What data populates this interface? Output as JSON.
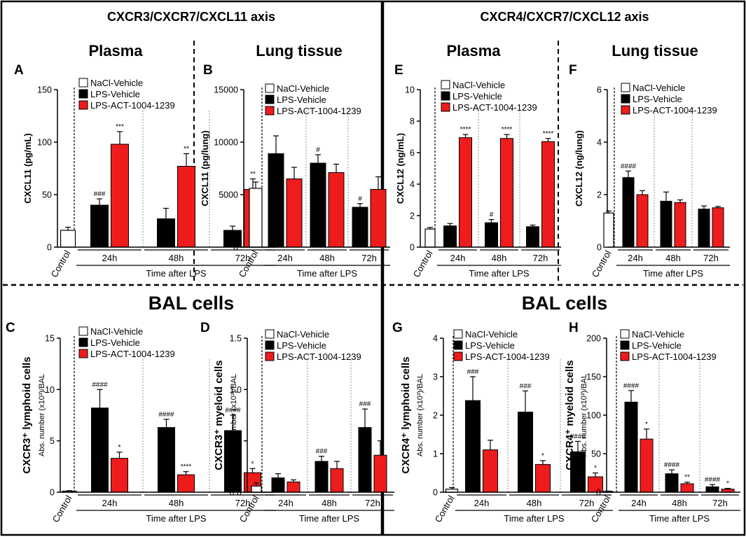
{
  "figure": {
    "left_header": "CXCR3/CXCR7/CXCL11 axis",
    "right_header": "CXCR4/CXCR7/CXCL12 axis",
    "bal_title_left": "BAL cells",
    "bal_title_right": "BAL cells"
  },
  "colors": {
    "nacl": "#ffffff",
    "lps_vehicle": "#000000",
    "lps_act": "#ee1c1c"
  },
  "chart_data": [
    {
      "panel": "A",
      "type": "bar",
      "section_title": "Plasma",
      "ylabel": "CXCL11 (pg/mL)",
      "ylabel_sub": "",
      "ylim": [
        0,
        150
      ],
      "yticks": [
        "0",
        "50",
        "100",
        "150"
      ],
      "legend": [
        "NaCl-Vehicle",
        "LPS-Vehicle",
        "LPS-ACT-1004-1239"
      ],
      "control_label": "Control",
      "timepoints": [
        "24h",
        "48h",
        "72h"
      ],
      "xlabel": "Time after LPS",
      "control": {
        "value": 16,
        "err": 3
      },
      "series": [
        {
          "name": "LPS-Vehicle",
          "values": [
            40,
            27,
            16
          ],
          "errors": [
            6,
            10,
            4
          ],
          "annotations": [
            "###",
            "",
            ""
          ]
        },
        {
          "name": "LPS-ACT-1004-1239",
          "values": [
            98,
            77,
            55
          ],
          "errors": [
            12,
            12,
            10
          ],
          "annotations": [
            "***",
            "**",
            "**"
          ]
        }
      ]
    },
    {
      "panel": "B",
      "type": "bar",
      "section_title": "Lung tissue",
      "ylabel": "CXCL11 (pg/lung)",
      "ylabel_sub": "",
      "ylim": [
        0,
        15000
      ],
      "yticks": [
        "0",
        "5000",
        "10000",
        "15000"
      ],
      "legend": [
        "NaCl-Vehicle",
        "LPS-Vehicle",
        "LPS-ACT-1004-1239"
      ],
      "control_label": "Control",
      "timepoints": [
        "24h",
        "48h",
        "72h"
      ],
      "xlabel": "Time after LPS",
      "control": {
        "value": 5600,
        "err": 600
      },
      "series": [
        {
          "name": "LPS-Vehicle",
          "values": [
            8900,
            8000,
            3800
          ],
          "errors": [
            1700,
            800,
            350
          ],
          "annotations": [
            "",
            "#",
            "#"
          ]
        },
        {
          "name": "LPS-ACT-1004-1239",
          "values": [
            6500,
            7100,
            5500
          ],
          "errors": [
            1100,
            800,
            1200
          ],
          "annotations": [
            "",
            "",
            ""
          ]
        }
      ]
    },
    {
      "panel": "E",
      "type": "bar",
      "section_title": "Plasma",
      "ylabel": "CXCL12 (ng/mL)",
      "ylabel_sub": "",
      "ylim": [
        0,
        10
      ],
      "yticks": [
        "0",
        "2",
        "4",
        "6",
        "8",
        "10"
      ],
      "legend": [
        "NaCl-Vehicle",
        "LPS-Vehicle",
        "LPS-ACT-1004-1239"
      ],
      "control_label": "Control",
      "timepoints": [
        "24h",
        "48h",
        "72h"
      ],
      "xlabel": "Time after LPS",
      "control": {
        "value": 1.15,
        "err": 0.1
      },
      "series": [
        {
          "name": "LPS-Vehicle",
          "values": [
            1.35,
            1.55,
            1.3
          ],
          "errors": [
            0.15,
            0.2,
            0.1
          ],
          "annotations": [
            "",
            "#",
            ""
          ]
        },
        {
          "name": "LPS-ACT-1004-1239",
          "values": [
            6.95,
            6.9,
            6.7
          ],
          "errors": [
            0.2,
            0.25,
            0.2
          ],
          "annotations": [
            "****",
            "****",
            "****"
          ]
        }
      ]
    },
    {
      "panel": "F",
      "type": "bar",
      "section_title": "Lung tissue",
      "ylabel": "CXCL12 (ng/lung)",
      "ylabel_sub": "",
      "ylim": [
        0,
        6
      ],
      "yticks": [
        "0",
        "2",
        "4",
        "6"
      ],
      "legend": [
        "NaCl-Vehicle",
        "LPS-Vehicle",
        "LPS-ACT-1004-1239"
      ],
      "control_label": "Control",
      "timepoints": [
        "24h",
        "48h",
        "72h"
      ],
      "xlabel": "Time after LPS",
      "control": {
        "value": 1.3,
        "err": 0.08
      },
      "series": [
        {
          "name": "LPS-Vehicle",
          "values": [
            2.65,
            1.75,
            1.45
          ],
          "errors": [
            0.25,
            0.35,
            0.12
          ],
          "annotations": [
            "####",
            "",
            ""
          ]
        },
        {
          "name": "LPS-ACT-1004-1239",
          "values": [
            2.0,
            1.7,
            1.5
          ],
          "errors": [
            0.15,
            0.1,
            0.05
          ],
          "annotations": [
            "",
            "",
            ""
          ]
        }
      ]
    },
    {
      "panel": "C",
      "type": "bar",
      "section_title": "",
      "ylabel": "CXCR3⁺ lymphoid cells",
      "ylabel_sub": "Abs. number (x10³)/BAL",
      "ylim": [
        0,
        15
      ],
      "yticks": [
        "0",
        "5",
        "10",
        "15"
      ],
      "legend": [
        "NaCl-Vehicle",
        "LPS-Vehicle",
        "LPS-ACT-1004-1239"
      ],
      "control_label": "Control",
      "timepoints": [
        "24h",
        "48h",
        "72h"
      ],
      "xlabel": "Time after LPS",
      "control": {
        "value": 0.1,
        "err": 0.05
      },
      "series": [
        {
          "name": "LPS-Vehicle",
          "values": [
            8.2,
            6.3,
            6.0
          ],
          "errors": [
            1.8,
            0.8,
            1.5
          ],
          "annotations": [
            "####",
            "####",
            "####"
          ]
        },
        {
          "name": "LPS-ACT-1004-1239",
          "values": [
            3.3,
            1.7,
            1.9
          ],
          "errors": [
            0.6,
            0.3,
            0.4
          ],
          "annotations": [
            "*",
            "****",
            "*"
          ]
        }
      ]
    },
    {
      "panel": "D",
      "type": "bar",
      "section_title": "",
      "ylabel": "CXCR3⁺ myeloid cells",
      "ylabel_sub": "Abs. number (x10³)/BAL",
      "ylim": [
        0,
        1.5
      ],
      "yticks": [
        "0.0",
        "0.5",
        "1.0",
        "1.5"
      ],
      "legend": [
        "NaCl-Vehicle",
        "LPS-Vehicle",
        "LPS-ACT-1004-1239"
      ],
      "control_label": "Control",
      "timepoints": [
        "24h",
        "48h",
        "72h"
      ],
      "xlabel": "Time after LPS",
      "control": {
        "value": 0.06,
        "err": 0.03
      },
      "series": [
        {
          "name": "LPS-Vehicle",
          "values": [
            0.14,
            0.3,
            0.63
          ],
          "errors": [
            0.04,
            0.05,
            0.18
          ],
          "annotations": [
            "",
            "###",
            "###"
          ]
        },
        {
          "name": "LPS-ACT-1004-1239",
          "values": [
            0.1,
            0.23,
            0.36
          ],
          "errors": [
            0.02,
            0.07,
            0.14
          ],
          "annotations": [
            "",
            "",
            ""
          ]
        }
      ]
    },
    {
      "panel": "G",
      "type": "bar",
      "section_title": "",
      "ylabel": "CXCR4⁺ lymphoid cells",
      "ylabel_sub": "Abs. number (x10³)/BAL",
      "ylim": [
        0,
        4
      ],
      "yticks": [
        "0",
        "1",
        "2",
        "3",
        "4"
      ],
      "legend": [
        "NaCl-Vehicle",
        "LPS-Vehicle",
        "LPS-ACT-1004-1239"
      ],
      "control_label": "Control",
      "timepoints": [
        "24h",
        "48h",
        "72h"
      ],
      "xlabel": "Time after LPS",
      "control": {
        "value": 0.08,
        "err": 0.04
      },
      "series": [
        {
          "name": "LPS-Vehicle",
          "values": [
            2.38,
            2.08,
            1.05
          ],
          "errors": [
            0.62,
            0.55,
            0.27
          ],
          "annotations": [
            "###",
            "###",
            "####"
          ]
        },
        {
          "name": "LPS-ACT-1004-1239",
          "values": [
            1.1,
            0.72,
            0.4
          ],
          "errors": [
            0.25,
            0.1,
            0.1
          ],
          "annotations": [
            "",
            "*",
            "*"
          ]
        }
      ]
    },
    {
      "panel": "H",
      "type": "bar",
      "section_title": "",
      "ylabel": "CXCR4⁺ myeloid cells",
      "ylabel_sub": "Abs. number (x10³)/BAL",
      "ylim": [
        0,
        200
      ],
      "yticks": [
        "0",
        "50",
        "100",
        "150",
        "200"
      ],
      "legend": [
        "NaCl-Vehicle",
        "LPS-Vehicle",
        "LPS-ACT-1004-1239"
      ],
      "control_label": "Control",
      "timepoints": [
        "24h",
        "48h",
        "72h"
      ],
      "xlabel": "Time after LPS",
      "control": {
        "value": 1,
        "err": 0.5
      },
      "series": [
        {
          "name": "LPS-Vehicle",
          "values": [
            117,
            24,
            7
          ],
          "errors": [
            15,
            5,
            3
          ],
          "annotations": [
            "####",
            "####",
            "####"
          ]
        },
        {
          "name": "LPS-ACT-1004-1239",
          "values": [
            69,
            11,
            4
          ],
          "errors": [
            13,
            2,
            1
          ],
          "annotations": [
            "*",
            "**",
            "*"
          ]
        }
      ]
    }
  ]
}
